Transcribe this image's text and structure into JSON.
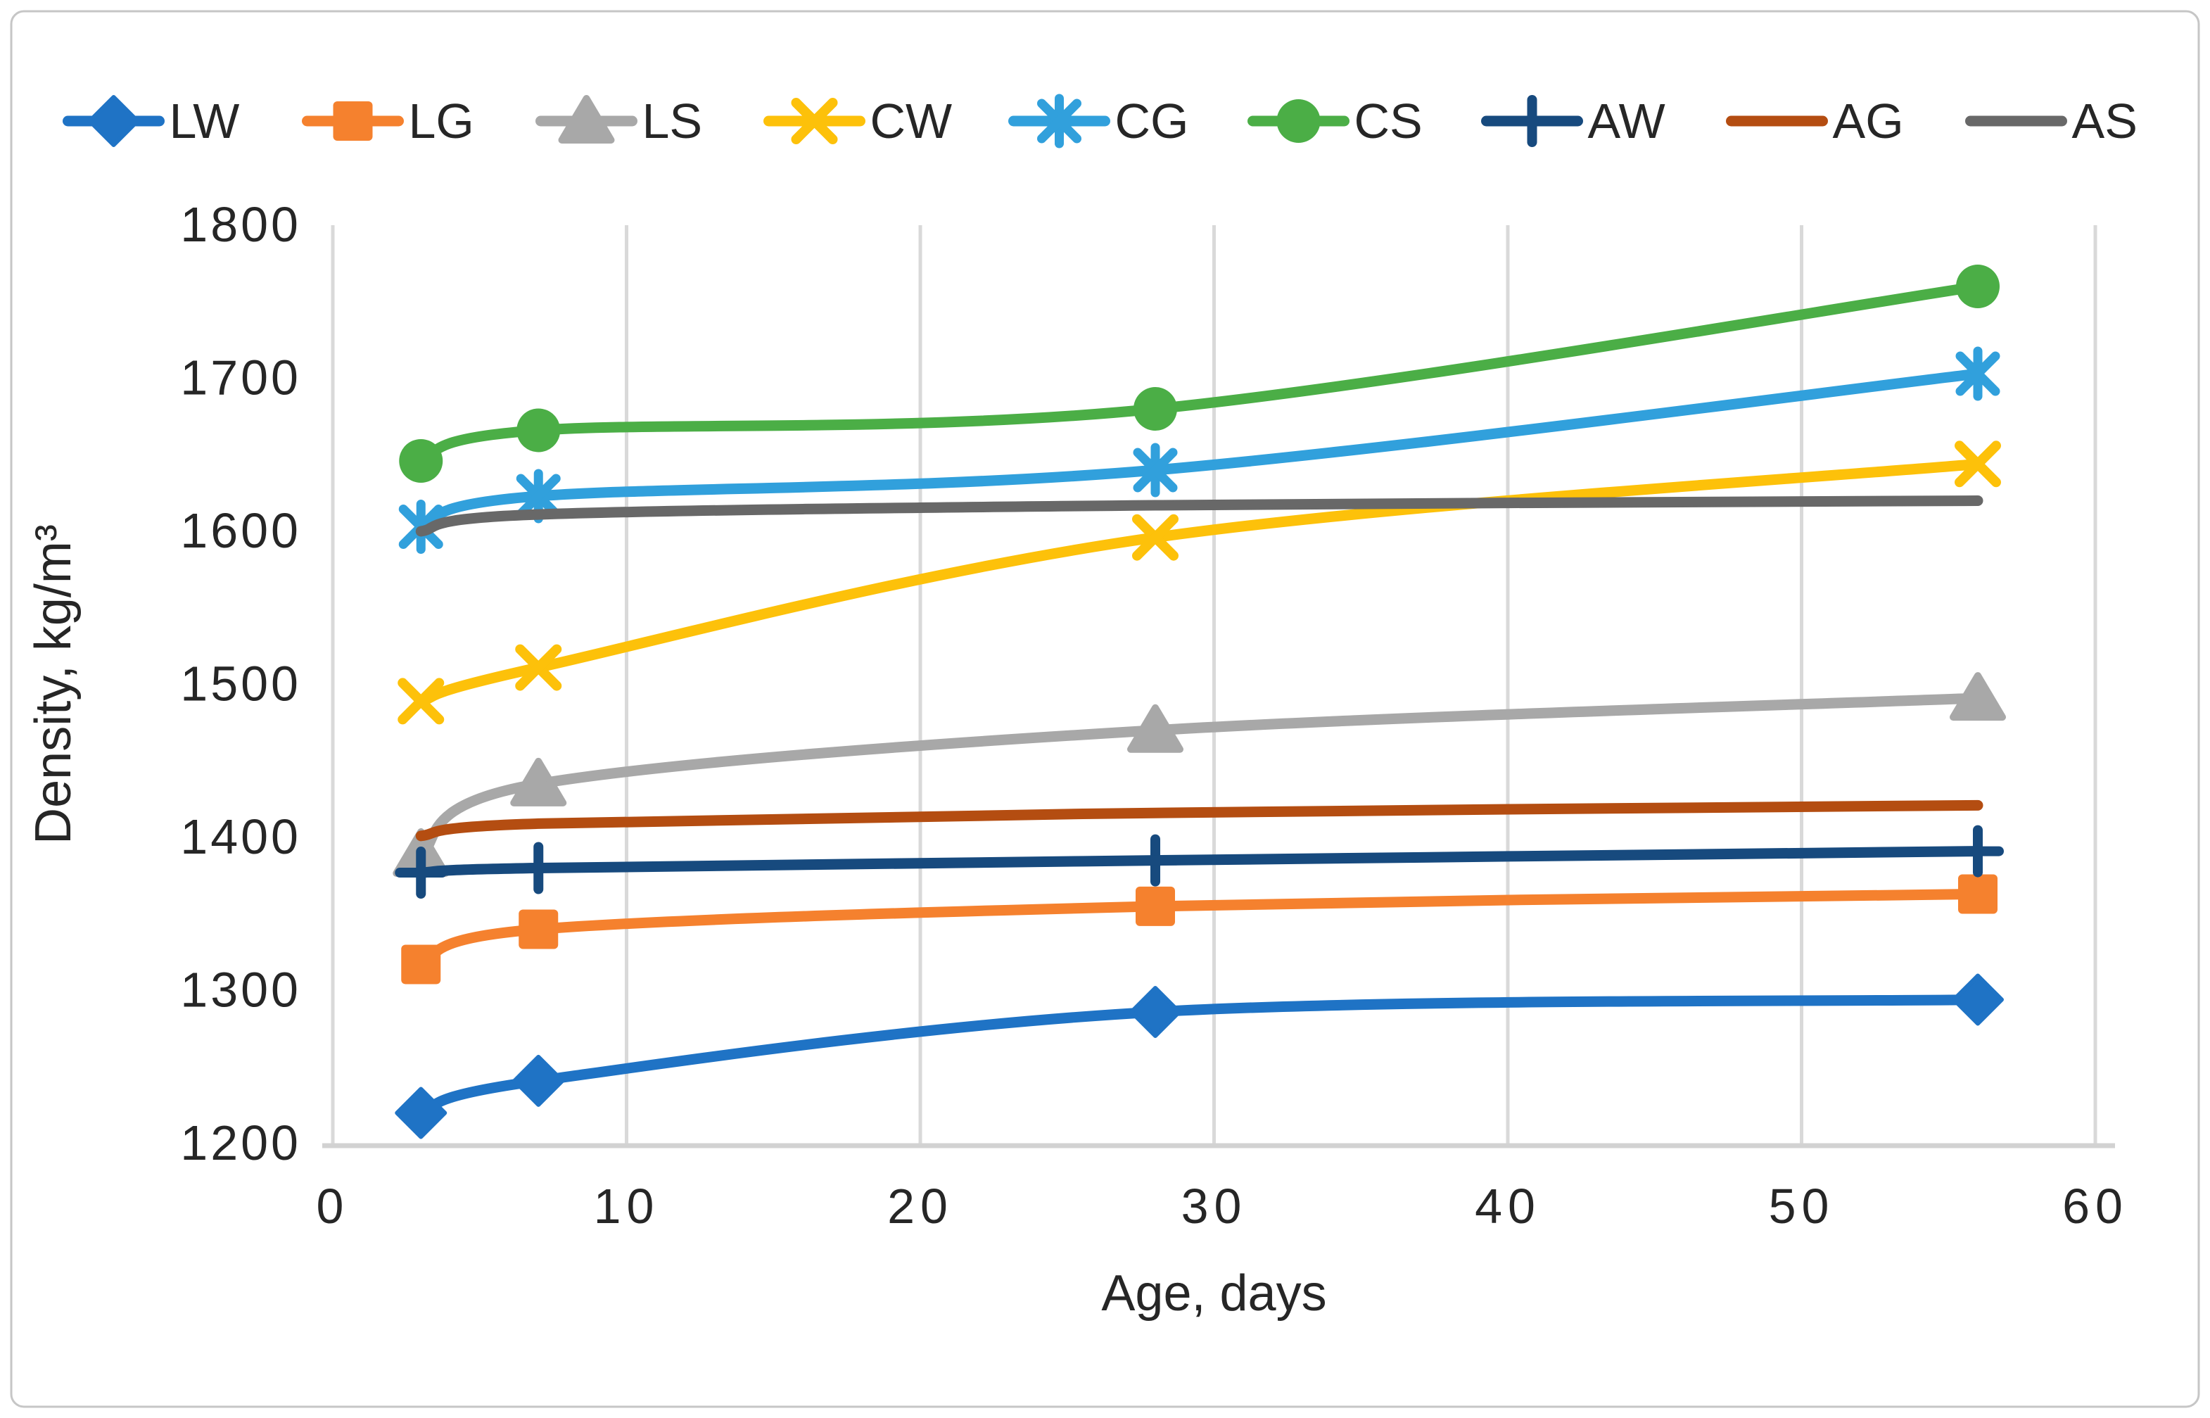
{
  "figure": {
    "border_color": "#c6c6c6",
    "background": "#ffffff"
  },
  "axes_style": {
    "grid_color": "#d9d9d9",
    "axis_line_color": "#d2d2d2",
    "text_color": "#262626"
  },
  "chart_data": {
    "type": "line",
    "x": [
      3,
      7,
      28,
      56
    ],
    "series": [
      {
        "name": "LW",
        "marker": "diamond",
        "color": "#1f73c5",
        "values": [
          1220,
          1241,
          1286,
          1294
        ]
      },
      {
        "name": "LG",
        "marker": "square",
        "color": "#f5812e",
        "values": [
          1317,
          1340,
          1355,
          1363
        ]
      },
      {
        "name": "LS",
        "marker": "triangle",
        "color": "#a8a8a8",
        "values": [
          1389,
          1435,
          1470,
          1491
        ]
      },
      {
        "name": "CW",
        "marker": "x",
        "color": "#fdc10a",
        "values": [
          1489,
          1511,
          1596,
          1644
        ]
      },
      {
        "name": "CG",
        "marker": "asterisk",
        "color": "#31a0dc",
        "values": [
          1603,
          1623,
          1640,
          1703
        ]
      },
      {
        "name": "CS",
        "marker": "circle",
        "color": "#4bae46",
        "values": [
          1646,
          1666,
          1680,
          1760
        ]
      },
      {
        "name": "AW",
        "marker": "plus",
        "color": "#174a7e",
        "values": [
          1377,
          1380,
          1385,
          1391
        ]
      },
      {
        "name": "AG",
        "marker": "none",
        "color": "#b44d11",
        "values": [
          1401,
          1409,
          1416,
          1421
        ]
      },
      {
        "name": "AS",
        "marker": "none",
        "color": "#686868",
        "values": [
          1600,
          1611,
          1617,
          1620
        ]
      }
    ],
    "title": "",
    "xlabel": "Age, days",
    "ylabel": "Density, kg/m³",
    "xlim": [
      0,
      60
    ],
    "ylim": [
      1200,
      1800
    ],
    "xticks": [
      0,
      10,
      20,
      30,
      40,
      50,
      60
    ],
    "yticks": [
      1200,
      1300,
      1400,
      1500,
      1600,
      1700,
      1800
    ],
    "grid": "vertical-only",
    "legend_position": "top",
    "smooth_lines": true
  }
}
